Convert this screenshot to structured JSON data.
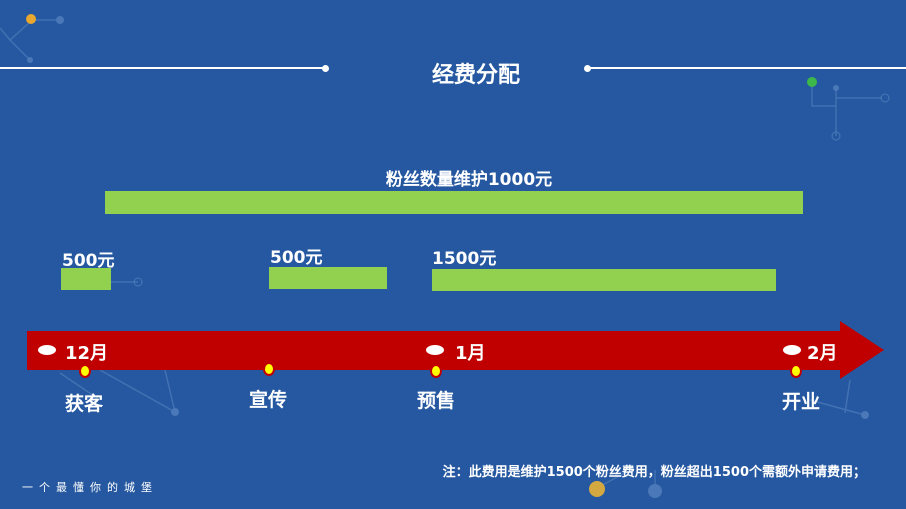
{
  "title": "经费分配",
  "colors": {
    "background": "#2558a0",
    "bar": "#92d050",
    "arrow": "#c00000",
    "marker": "#ffff00"
  },
  "overall_bar": {
    "label": "粉丝数量维护1000元"
  },
  "segments": [
    {
      "label": "500元"
    },
    {
      "label": "500元"
    },
    {
      "label": "1500元"
    }
  ],
  "months": [
    "12月",
    "1月",
    "2月"
  ],
  "stages": [
    "获客",
    "宣传",
    "预售",
    "开业"
  ],
  "note": "注：此费用是维护1500个粉丝费用，粉丝超出1500个需额外申请费用；",
  "slogan": "一个最懂你的城堡"
}
